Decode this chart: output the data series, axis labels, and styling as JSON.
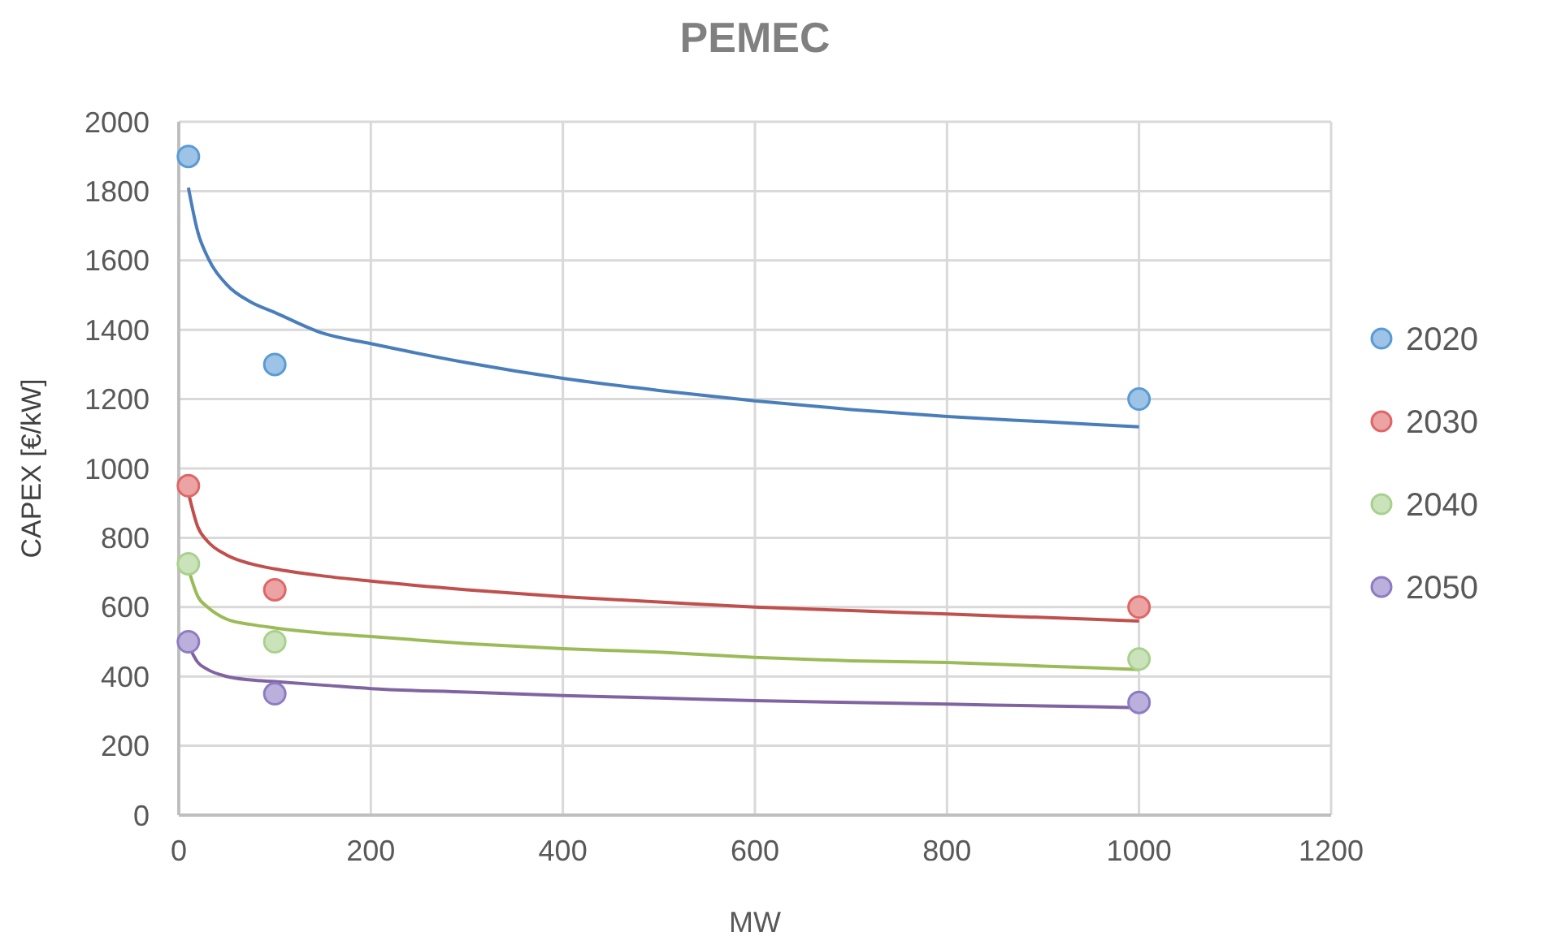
{
  "chart_data": {
    "type": "scatter",
    "title": "PEMEC",
    "xlabel": "MW",
    "ylabel": "CAPEX [€/kW]",
    "xlim": [
      0,
      1200
    ],
    "xticks": [
      0,
      200,
      400,
      600,
      800,
      1000,
      1200
    ],
    "ylim": [
      0,
      2000
    ],
    "yticks": [
      0,
      200,
      400,
      600,
      800,
      1000,
      1200,
      1400,
      1600,
      1800,
      2000
    ],
    "grid": true,
    "legend": "right",
    "marker": "circle",
    "x": [
      10,
      100,
      1000
    ],
    "series": [
      {
        "name": "2020",
        "color": "#5b9bd5",
        "values": [
          1900,
          1300,
          1200
        ]
      },
      {
        "name": "2030",
        "color": "#e06666",
        "values": [
          950,
          650,
          600
        ]
      },
      {
        "name": "2040",
        "color": "#a9d18e",
        "values": [
          725,
          500,
          450
        ]
      },
      {
        "name": "2050",
        "color": "#8e7cc3",
        "values": [
          500,
          350,
          325
        ]
      },
      {
        "type": "line",
        "marker": "none",
        "color": "#4a7ebb",
        "x": [
          10,
          20,
          30,
          50,
          75,
          100,
          150,
          200,
          300,
          400,
          500,
          600,
          700,
          800,
          900,
          1000
        ],
        "values": [
          1810,
          1680,
          1610,
          1530,
          1480,
          1450,
          1390,
          1360,
          1305,
          1260,
          1225,
          1195,
          1170,
          1150,
          1135,
          1120
        ]
      },
      {
        "type": "line",
        "marker": "none",
        "color": "#c0504d",
        "x": [
          10,
          20,
          30,
          50,
          75,
          100,
          150,
          200,
          300,
          400,
          500,
          600,
          700,
          800,
          900,
          1000
        ],
        "values": [
          930,
          830,
          790,
          750,
          725,
          710,
          690,
          675,
          650,
          630,
          615,
          600,
          590,
          580,
          570,
          560
        ]
      },
      {
        "type": "line",
        "marker": "none",
        "color": "#9bbb59",
        "x": [
          10,
          20,
          30,
          50,
          75,
          100,
          150,
          200,
          300,
          400,
          500,
          600,
          700,
          800,
          900,
          1000
        ],
        "values": [
          710,
          630,
          600,
          565,
          550,
          540,
          525,
          515,
          495,
          480,
          470,
          455,
          445,
          440,
          430,
          420
        ]
      },
      {
        "type": "line",
        "marker": "none",
        "color": "#8064a2",
        "x": [
          10,
          20,
          30,
          50,
          75,
          100,
          150,
          200,
          300,
          400,
          500,
          600,
          700,
          800,
          900,
          1000
        ],
        "values": [
          490,
          440,
          420,
          400,
          390,
          385,
          375,
          365,
          355,
          345,
          338,
          330,
          325,
          320,
          315,
          310
        ]
      }
    ]
  }
}
